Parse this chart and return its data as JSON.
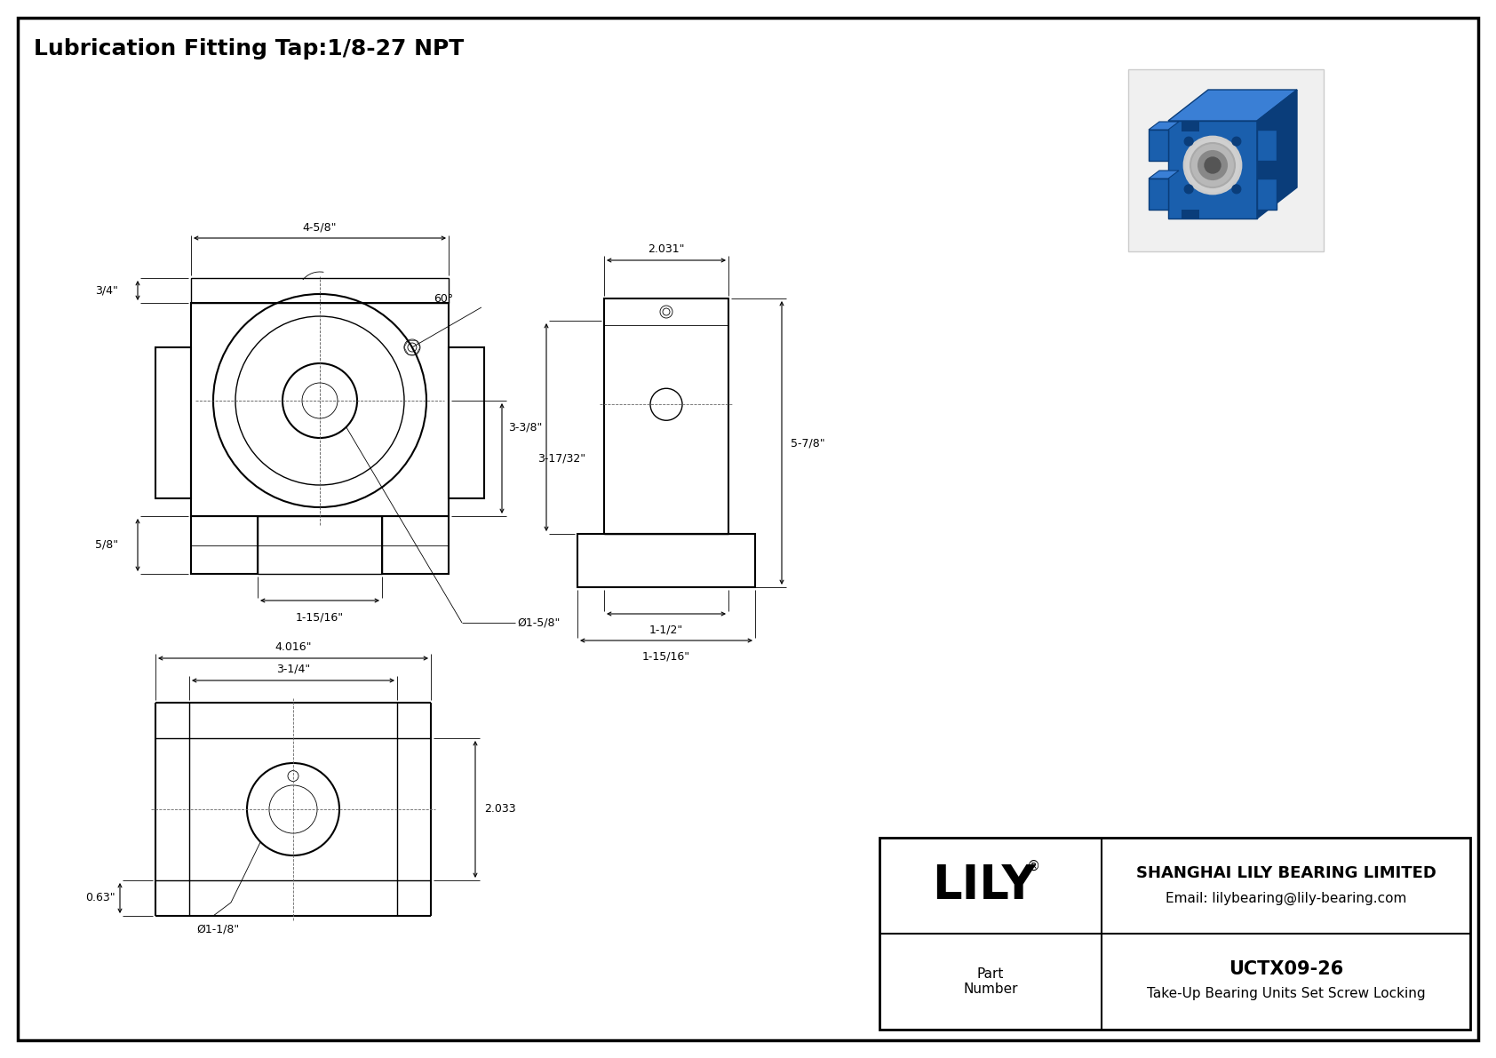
{
  "title": "Lubrication Fitting Tap:1/8-27 NPT",
  "bg_color": "#ffffff",
  "line_color": "#000000",
  "company": "SHANGHAI LILY BEARING LIMITED",
  "email": "Email: lilybearing@lily-bearing.com",
  "part_label": "Part\nNumber",
  "part_number": "UCTX09-26",
  "part_desc": "Take-Up Bearing Units Set Screw Locking",
  "brand": "LILY",
  "dim_4_5_8": "4-5/8\"",
  "dim_3_4": "3/4\"",
  "dim_5_8": "5/8\"",
  "dim_1_15_16": "1-15/16\"",
  "dim_3_17_32": "3-17/32\"",
  "dim_phi_1_5_8": "Ø1-5/8\"",
  "dim_60": "60°",
  "dim_2031": "2.031\"",
  "dim_3_3_8": "3-3/8\"",
  "dim_5_7_8": "5-7/8\"",
  "dim_1_1_2": "1-1/2\"",
  "dim_1_15_16_b": "1-15/16\"",
  "dim_4016": "4.016\"",
  "dim_3_1_4": "3-1/4\"",
  "dim_2033": "2.033",
  "dim_0_63": "0.63\"",
  "dim_phi_1_1_8": "Ø1-1/8\""
}
